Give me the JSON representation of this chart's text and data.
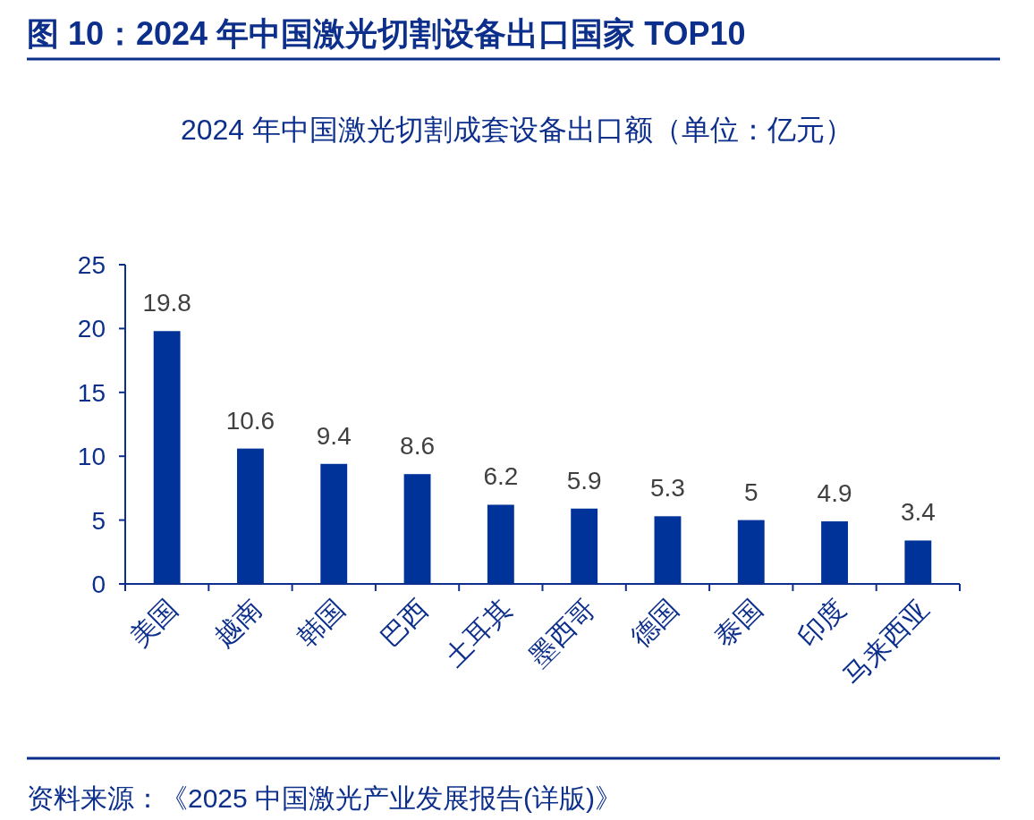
{
  "chart_data": {
    "type": "bar",
    "title": "图 10：2024 年中国激光切割设备出口国家 TOP10",
    "subtitle": "2024 年中国激光切割成套设备出口额（单位：亿元）",
    "categories": [
      "美国",
      "越南",
      "韩国",
      "巴西",
      "土耳其",
      "墨西哥",
      "德国",
      "泰国",
      "印度",
      "马来西亚"
    ],
    "values": [
      19.8,
      10.6,
      9.4,
      8.6,
      6.2,
      5.9,
      5.3,
      5,
      4.9,
      3.4
    ],
    "color": "#00339a",
    "ylim": [
      0,
      25
    ],
    "yticks": [
      0,
      5,
      10,
      15,
      20,
      25
    ],
    "grid": false,
    "data_labels": true,
    "annotations": [
      "资料来源：《2025 中国激光产业发展报告(详版)》"
    ]
  }
}
